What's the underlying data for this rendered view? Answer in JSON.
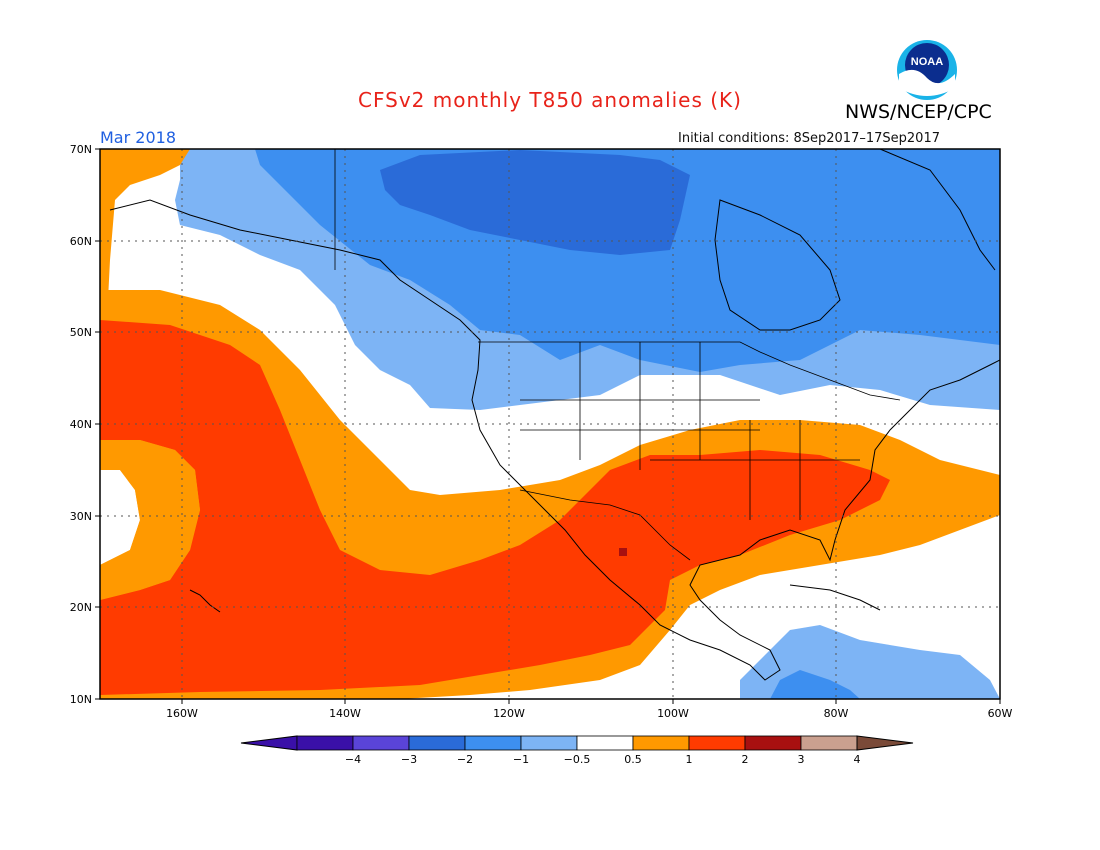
{
  "title": "CFSv2 monthly T850 anomalies (K)",
  "agency": "NWS/NCEP/CPC",
  "logo_text": "NOAA",
  "valid_month": "Mar 2018",
  "initial_conditions": "Initial conditions: 8Sep2017–17Sep2017",
  "map": {
    "lon_range": [
      -170,
      -60
    ],
    "lat_range": [
      10,
      70
    ],
    "lat_labels": [
      "70N",
      "60N",
      "50N",
      "40N",
      "30N",
      "20N",
      "10N"
    ],
    "lon_labels": [
      "160W",
      "140W",
      "120W",
      "100W",
      "80W",
      "60W"
    ]
  },
  "legend": {
    "colors": [
      "#3a10a8",
      "#5a44d8",
      "#2a6bd8",
      "#3d8ff0",
      "#7db4f5",
      "#ffffff",
      "#ff9900",
      "#ff3b00",
      "#a81010",
      "#caa08f"
    ],
    "end_colors": [
      "#3a10a8",
      "#7a4a38"
    ],
    "ticks": [
      "−4",
      "−3",
      "−2",
      "−1",
      "−0.5",
      "0.5",
      "1",
      "2",
      "3",
      "4"
    ]
  },
  "colors": {
    "title": "#e8231a",
    "month": "#1f5fe0"
  }
}
